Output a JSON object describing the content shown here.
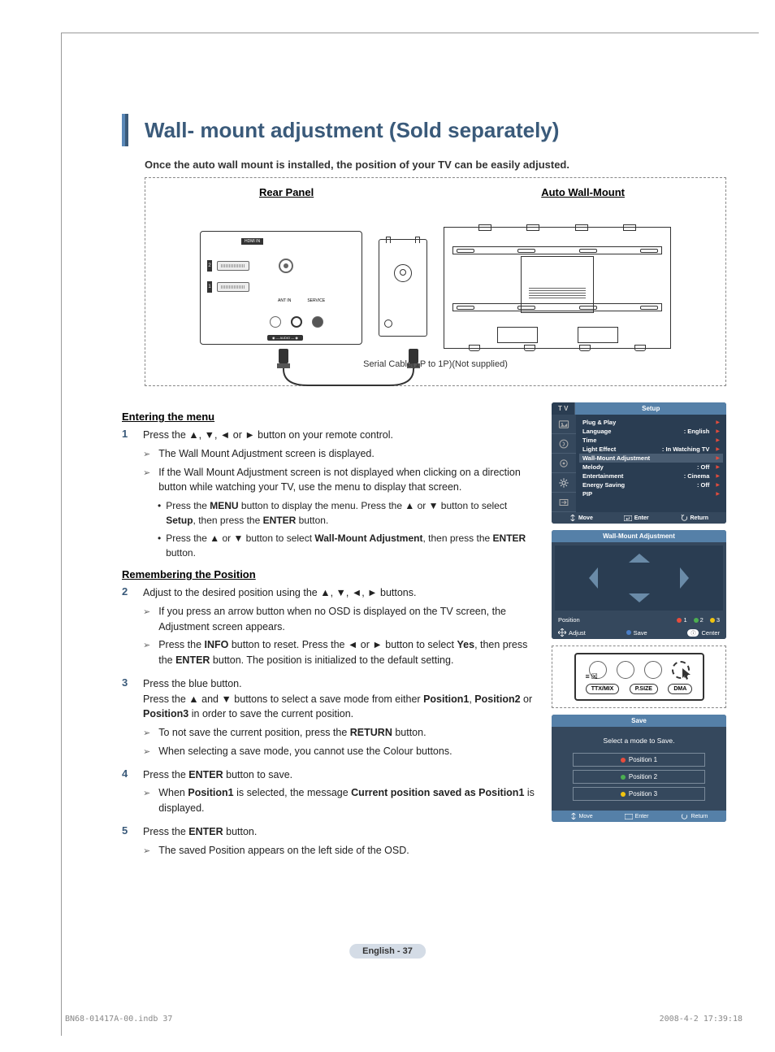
{
  "title": "Wall- mount adjustment (Sold separately)",
  "subtitle": "Once the auto wall mount is installed, the position of your TV can be easily adjusted.",
  "diagram": {
    "rear_label": "Rear Panel",
    "wallmount_label": "Auto Wall-Mount",
    "cable_label": "Serial Cable(1P to 1P)(Not supplied)",
    "hdmi_label": "HDMI IN",
    "antin_label": "ANT IN",
    "service_label": "SERVICE",
    "audio_label": "AUDIO OUT"
  },
  "sections": {
    "entering": "Entering the menu",
    "remembering": "Remembering the Position"
  },
  "steps": {
    "s1": {
      "body": "Press the ▲, ▼, ◄ or ► button on your remote control.",
      "sub1": "The Wall Mount Adjustment screen is displayed.",
      "sub2": "If the Wall Mount Adjustment screen is not displayed when clicking on a direction button while watching your TV, use the menu to display that screen.",
      "b1_pre": "Press the ",
      "b1_bold1": "MENU",
      "b1_mid": " button to display the menu. Press the ▲ or ▼ button to select ",
      "b1_bold2": "Setup",
      "b1_mid2": ", then press the ",
      "b1_bold3": "ENTER",
      "b1_end": " button.",
      "b2_pre": "Press the ▲ or ▼ button to select ",
      "b2_bold1": "Wall-Mount Adjustment",
      "b2_mid": ", then press the ",
      "b2_bold2": "ENTER",
      "b2_end": " button."
    },
    "s2": {
      "body": "Adjust to the desired position using the ▲, ▼, ◄, ► buttons.",
      "sub1": "If you press an arrow button when no OSD is displayed on the TV screen, the Adjustment screen appears.",
      "sub2_pre": "Press the ",
      "sub2_b1": "INFO",
      "sub2_mid": " button to reset. Press the ◄ or ► button to select ",
      "sub2_b2": "Yes",
      "sub2_mid2": ", then press the ",
      "sub2_b3": "ENTER",
      "sub2_end": " button. The position is initialized to the default setting."
    },
    "s3": {
      "body_pre": "Press the blue button.\nPress the ▲ and ▼ buttons to select a save mode from either ",
      "b1": "Position1",
      "mid1": ", ",
      "b2": "Position2",
      "mid2": " or ",
      "b3": "Position3",
      "end": " in order to save the current position.",
      "sub1_pre": "To not save the current position, press the ",
      "sub1_b": "RETURN",
      "sub1_end": " button.",
      "sub2": "When selecting a save mode, you cannot use the Colour buttons."
    },
    "s4": {
      "body_pre": "Press the ",
      "body_b": "ENTER",
      "body_end": " button to save.",
      "sub_pre": "When ",
      "sub_b1": "Position1",
      "sub_mid": " is selected, the message ",
      "sub_b2": "Current position saved as Position1",
      "sub_end": " is displayed."
    },
    "s5": {
      "body_pre": "Press the ",
      "body_b": "ENTER",
      "body_end": " button.",
      "sub": "The saved Position appears on the left side of the OSD."
    }
  },
  "osd_setup": {
    "tab": "T V",
    "title": "Setup",
    "items": [
      {
        "label": "Plug & Play",
        "value": ""
      },
      {
        "label": "Language",
        "value": ": English"
      },
      {
        "label": "Time",
        "value": ""
      },
      {
        "label": "Light Effect",
        "value": ": In Watching TV"
      },
      {
        "label": "Wall-Mount Adjustment",
        "value": "",
        "hl": true
      },
      {
        "label": "Melody",
        "value": ": Off"
      },
      {
        "label": "Entertainment",
        "value": ": Cinema"
      },
      {
        "label": "Energy Saving",
        "value": ": Off"
      },
      {
        "label": "PIP",
        "value": ""
      }
    ],
    "footer": {
      "move": "Move",
      "enter": "Enter",
      "return": "Return"
    }
  },
  "osd_mount": {
    "title": "Wall-Mount Adjustment",
    "position": "Position",
    "p1": "1",
    "p2": "2",
    "p3": "3",
    "adjust": "Adjust",
    "save": "Save",
    "center": "Center"
  },
  "remote": {
    "ttx": "TTX/MIX",
    "psize": "P.SIZE",
    "dma": "DMA"
  },
  "osd_save": {
    "title": "Save",
    "msg": "Select a mode to Save.",
    "p1": "Position 1",
    "p2": "Position 2",
    "p3": "Position 3",
    "move": "Move",
    "enter": "Enter",
    "return": "Return"
  },
  "page_footer": "English - 37",
  "doc_footer_left": "BN68-01417A-00.indb   37",
  "doc_footer_right": "2008-4-2   17:39:18",
  "colors": {
    "accent": "#3a5a7a",
    "osd_bg": "#2a3d52",
    "osd_header": "#5580a8",
    "osd_side": "#35485d",
    "red": "#e74c3c",
    "green": "#4caf50",
    "yellow": "#f1c40f",
    "blue": "#4a7ec7"
  }
}
